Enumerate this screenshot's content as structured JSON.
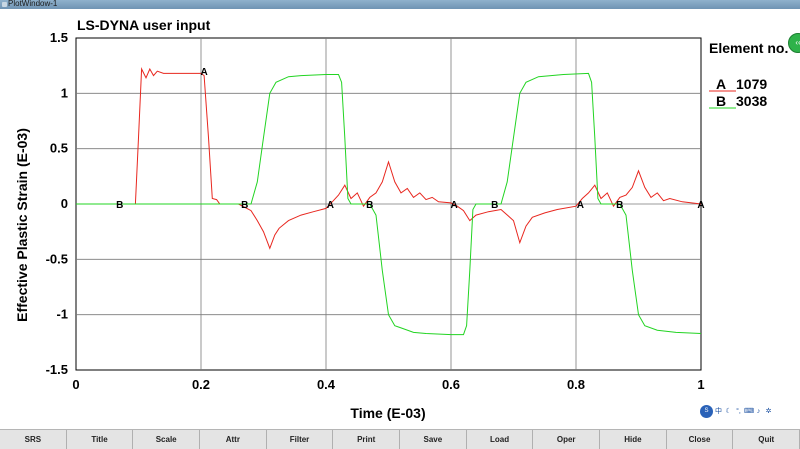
{
  "window": {
    "title": "PlotWindow-1"
  },
  "chart_data": {
    "type": "line",
    "title": "LS-DYNA user input",
    "xlabel": "Time (E-03)",
    "ylabel": "Effective Plastic Strain (E-03)",
    "xlim": [
      0,
      1
    ],
    "ylim": [
      -1.5,
      1.5
    ],
    "x_ticks": [
      "0",
      "0.2",
      "0.4",
      "0.6",
      "0.8",
      "1"
    ],
    "y_ticks": [
      "1.5",
      "1",
      "0.5",
      "0",
      "-0.5",
      "-1",
      "-1.5"
    ],
    "grid": true,
    "legend_title": "Element no.",
    "legend_position": "right",
    "series": [
      {
        "name": "1079",
        "marker_label": "A",
        "color": "#e8271f",
        "points": [
          [
            0,
            0
          ],
          [
            0.095,
            0
          ],
          [
            0.1,
            0.6
          ],
          [
            0.105,
            1.22
          ],
          [
            0.112,
            1.14
          ],
          [
            0.118,
            1.22
          ],
          [
            0.124,
            1.16
          ],
          [
            0.13,
            1.2
          ],
          [
            0.14,
            1.18
          ],
          [
            0.2,
            1.18
          ],
          [
            0.205,
            1.16
          ],
          [
            0.212,
            0.6
          ],
          [
            0.218,
            0.05
          ],
          [
            0.225,
            0.04
          ],
          [
            0.23,
            0
          ],
          [
            0.26,
            0
          ],
          [
            0.27,
            -0.03
          ],
          [
            0.28,
            -0.06
          ],
          [
            0.29,
            -0.15
          ],
          [
            0.3,
            -0.25
          ],
          [
            0.31,
            -0.4
          ],
          [
            0.318,
            -0.28
          ],
          [
            0.325,
            -0.22
          ],
          [
            0.34,
            -0.15
          ],
          [
            0.36,
            -0.1
          ],
          [
            0.38,
            -0.07
          ],
          [
            0.4,
            -0.04
          ],
          [
            0.41,
            0.02
          ],
          [
            0.42,
            0.08
          ],
          [
            0.43,
            0.17
          ],
          [
            0.44,
            0.05
          ],
          [
            0.45,
            0.1
          ],
          [
            0.46,
            -0.02
          ],
          [
            0.47,
            0.06
          ],
          [
            0.48,
            0.1
          ],
          [
            0.49,
            0.2
          ],
          [
            0.5,
            0.38
          ],
          [
            0.51,
            0.2
          ],
          [
            0.52,
            0.1
          ],
          [
            0.53,
            0.14
          ],
          [
            0.54,
            0.06
          ],
          [
            0.55,
            0.1
          ],
          [
            0.56,
            0.04
          ],
          [
            0.57,
            0.06
          ],
          [
            0.58,
            0.02
          ],
          [
            0.6,
            0.01
          ],
          [
            0.61,
            -0.02
          ],
          [
            0.62,
            -0.06
          ],
          [
            0.63,
            -0.15
          ],
          [
            0.64,
            -0.1
          ],
          [
            0.66,
            -0.07
          ],
          [
            0.68,
            -0.05
          ],
          [
            0.7,
            -0.15
          ],
          [
            0.71,
            -0.35
          ],
          [
            0.72,
            -0.2
          ],
          [
            0.73,
            -0.12
          ],
          [
            0.75,
            -0.08
          ],
          [
            0.77,
            -0.05
          ],
          [
            0.8,
            -0.02
          ],
          [
            0.81,
            0.05
          ],
          [
            0.82,
            0.1
          ],
          [
            0.83,
            0.17
          ],
          [
            0.84,
            0.05
          ],
          [
            0.85,
            0.1
          ],
          [
            0.86,
            -0.02
          ],
          [
            0.87,
            0.06
          ],
          [
            0.88,
            0.08
          ],
          [
            0.89,
            0.15
          ],
          [
            0.9,
            0.3
          ],
          [
            0.91,
            0.15
          ],
          [
            0.92,
            0.06
          ],
          [
            0.93,
            0.1
          ],
          [
            0.94,
            0.03
          ],
          [
            0.95,
            0.05
          ],
          [
            0.97,
            0.02
          ],
          [
            1.0,
            0
          ]
        ],
        "marker_positions": [
          [
            0.205,
            1.2
          ],
          [
            0.407,
            0
          ],
          [
            0.605,
            0
          ],
          [
            0.807,
            0
          ],
          [
            1.0,
            0
          ]
        ]
      },
      {
        "name": "3038",
        "marker_label": "B",
        "color": "#22d422",
        "points": [
          [
            0,
            0
          ],
          [
            0.25,
            0
          ],
          [
            0.28,
            0
          ],
          [
            0.29,
            0.2
          ],
          [
            0.3,
            0.6
          ],
          [
            0.31,
            1.0
          ],
          [
            0.32,
            1.1
          ],
          [
            0.34,
            1.15
          ],
          [
            0.36,
            1.16
          ],
          [
            0.4,
            1.17
          ],
          [
            0.42,
            1.17
          ],
          [
            0.425,
            1.1
          ],
          [
            0.43,
            0.6
          ],
          [
            0.435,
            0.05
          ],
          [
            0.44,
            0
          ],
          [
            0.47,
            0
          ],
          [
            0.48,
            -0.1
          ],
          [
            0.49,
            -0.6
          ],
          [
            0.5,
            -1.0
          ],
          [
            0.51,
            -1.1
          ],
          [
            0.52,
            -1.12
          ],
          [
            0.54,
            -1.16
          ],
          [
            0.56,
            -1.17
          ],
          [
            0.6,
            -1.18
          ],
          [
            0.62,
            -1.18
          ],
          [
            0.625,
            -1.1
          ],
          [
            0.63,
            -0.6
          ],
          [
            0.635,
            -0.05
          ],
          [
            0.64,
            0
          ],
          [
            0.68,
            0
          ],
          [
            0.69,
            0.2
          ],
          [
            0.7,
            0.6
          ],
          [
            0.71,
            1.0
          ],
          [
            0.72,
            1.1
          ],
          [
            0.74,
            1.15
          ],
          [
            0.78,
            1.17
          ],
          [
            0.82,
            1.18
          ],
          [
            0.825,
            1.1
          ],
          [
            0.83,
            0.6
          ],
          [
            0.835,
            0.05
          ],
          [
            0.84,
            0
          ],
          [
            0.87,
            0
          ],
          [
            0.88,
            -0.1
          ],
          [
            0.89,
            -0.6
          ],
          [
            0.9,
            -1.0
          ],
          [
            0.91,
            -1.1
          ],
          [
            0.93,
            -1.14
          ],
          [
            0.96,
            -1.16
          ],
          [
            1.0,
            -1.17
          ]
        ],
        "marker_positions": [
          [
            0.07,
            0
          ],
          [
            0.27,
            0
          ],
          [
            0.47,
            0
          ],
          [
            0.67,
            0
          ],
          [
            0.87,
            0
          ]
        ]
      }
    ]
  },
  "tray_icons": [
    "app-logo-icon",
    "chinese-input-icon",
    "moon-icon",
    "punctuation-icon",
    "keyboard-icon",
    "microphone-icon",
    "settings-icon"
  ],
  "tray_glyphs": {
    "logo": "S",
    "zh": "中",
    "moon": "☾",
    "punct": "°,",
    "kbd": "⌨",
    "mic": "♪",
    "gear": "✲"
  },
  "toolbar": [
    "SRS",
    "Title",
    "Scale",
    "Attr",
    "Filter",
    "Print",
    "Save",
    "Load",
    "Oper",
    "Hide",
    "Close",
    "Quit"
  ]
}
